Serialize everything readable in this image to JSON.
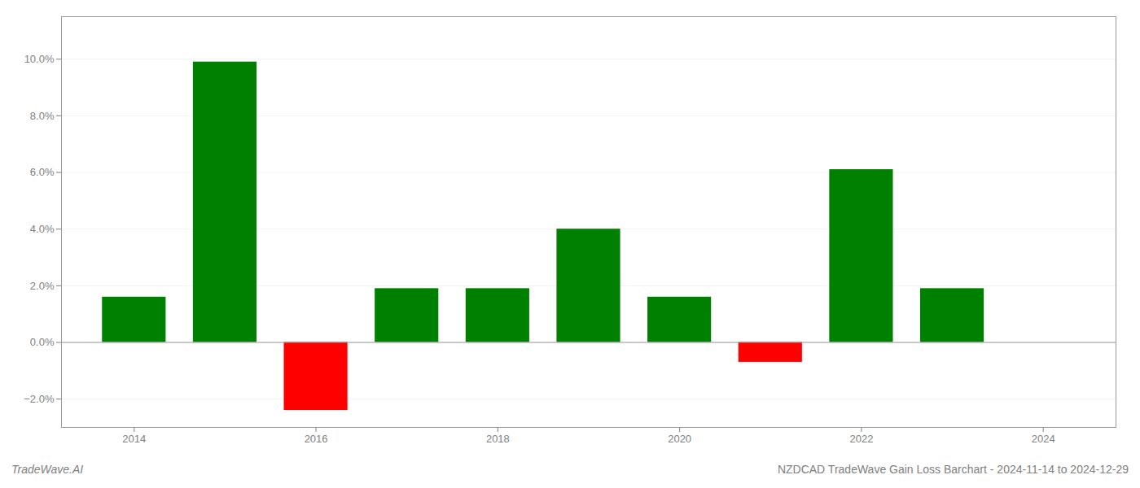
{
  "chart_data": {
    "type": "bar",
    "x": [
      2014,
      2015,
      2016,
      2017,
      2018,
      2019,
      2020,
      2021,
      2022,
      2023
    ],
    "values": [
      1.6,
      9.9,
      -2.4,
      1.9,
      1.9,
      4.0,
      1.6,
      -0.7,
      6.1,
      1.9
    ],
    "colors": [
      "#008000",
      "#008000",
      "#ff0000",
      "#008000",
      "#008000",
      "#008000",
      "#008000",
      "#ff0000",
      "#008000",
      "#008000"
    ],
    "xlim": [
      2013.2,
      2024.8
    ],
    "xticks": [
      2014,
      2016,
      2018,
      2020,
      2022,
      2024
    ],
    "ylim": [
      -3.0,
      11.5
    ],
    "yticks": [
      {
        "value": -2.0,
        "label": "−2.0%"
      },
      {
        "value": 0.0,
        "label": "0.0%"
      },
      {
        "value": 2.0,
        "label": "2.0%"
      },
      {
        "value": 4.0,
        "label": "4.0%"
      },
      {
        "value": 6.0,
        "label": "6.0%"
      },
      {
        "value": 8.0,
        "label": "8.0%"
      },
      {
        "value": 10.0,
        "label": "10.0%"
      }
    ],
    "grid": true,
    "annotations": [
      "TradeWave.AI",
      "NZDCAD TradeWave Gain Loss Barchart - 2024-11-14 to 2024-12-29"
    ]
  }
}
